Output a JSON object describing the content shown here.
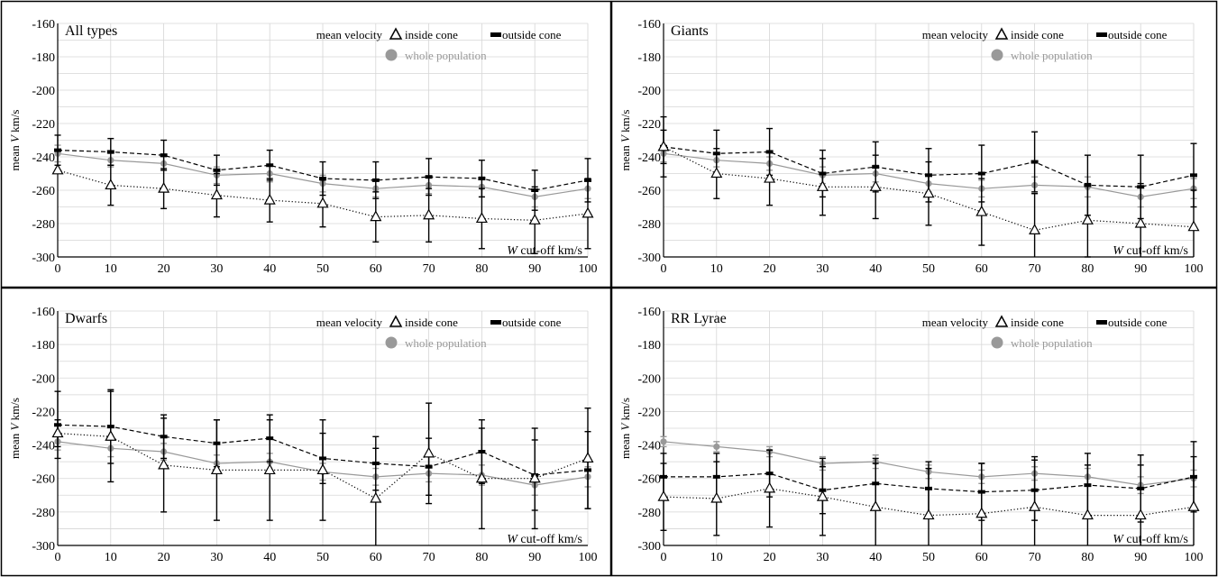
{
  "chart_data": [
    {
      "type": "line",
      "title": "All types",
      "xlabel_var": "W",
      "xlabel_rest": " cut-off km/s",
      "ylabel_pre": "mean ",
      "ylabel_var": "V",
      "ylabel_post": " km/s",
      "legend_heading": "mean velocity",
      "xlim": [
        0,
        100
      ],
      "ylim": [
        -300,
        -160
      ],
      "x": [
        0,
        10,
        20,
        30,
        40,
        50,
        60,
        70,
        80,
        90,
        100
      ],
      "xticks": [
        "0",
        "10",
        "20",
        "30",
        "40",
        "50",
        "60",
        "70",
        "80",
        "90",
        "100"
      ],
      "yticks": [
        "-160",
        "-180",
        "-200",
        "-220",
        "-240",
        "-260",
        "-280",
        "-300"
      ],
      "grid": true,
      "series": [
        {
          "name": "inside cone",
          "marker": "triangle",
          "style": "dotted",
          "color": "#000000",
          "values": [
            -248,
            -257,
            -259,
            -263,
            -266,
            -268,
            -276,
            -275,
            -277,
            -278,
            -274
          ],
          "err": [
            0,
            12,
            12,
            13,
            13,
            14,
            15,
            16,
            18,
            20,
            21
          ]
        },
        {
          "name": "outside cone",
          "marker": "bar",
          "style": "dashed",
          "color": "#000000",
          "values": [
            -236,
            -237,
            -239,
            -248,
            -245,
            -253,
            -254,
            -252,
            -253,
            -260,
            -254
          ],
          "err": [
            9,
            8,
            9,
            9,
            9,
            10,
            11,
            11,
            11,
            12,
            13
          ]
        },
        {
          "name": "whole population",
          "marker": "circle",
          "style": "solid",
          "color": "#999999",
          "values": [
            -238,
            -242,
            -244,
            -251,
            -250,
            -256,
            -259,
            -257,
            -258,
            -264,
            -259
          ],
          "err": [
            5,
            4,
            4,
            5,
            5,
            5,
            5,
            5,
            6,
            6,
            6
          ]
        }
      ]
    },
    {
      "type": "line",
      "title": "Giants",
      "xlabel_var": "W",
      "xlabel_rest": " cut-off km/s",
      "ylabel_pre": "mean ",
      "ylabel_var": "V",
      "ylabel_post": " km/s",
      "legend_heading": "mean velocity",
      "xlim": [
        0,
        100
      ],
      "ylim": [
        -300,
        -160
      ],
      "x": [
        0,
        10,
        20,
        30,
        40,
        50,
        60,
        70,
        80,
        90,
        100
      ],
      "xticks": [
        "0",
        "10",
        "20",
        "30",
        "40",
        "50",
        "60",
        "70",
        "80",
        "90",
        "100"
      ],
      "yticks": [
        "-160",
        "-180",
        "-200",
        "-220",
        "-240",
        "-260",
        "-280",
        "-300"
      ],
      "grid": true,
      "series": [
        {
          "name": "inside cone",
          "marker": "triangle",
          "style": "dotted",
          "color": "#000000",
          "values": [
            -234,
            -250,
            -253,
            -258,
            -258,
            -262,
            -273,
            -284,
            -278,
            -280,
            -282
          ],
          "err": [
            10,
            15,
            16,
            17,
            19,
            19,
            20,
            22,
            22,
            24,
            22
          ]
        },
        {
          "name": "outside cone",
          "marker": "bar",
          "style": "dashed",
          "color": "#000000",
          "values": [
            -234,
            -238,
            -237,
            -250,
            -246,
            -251,
            -250,
            -243,
            -257,
            -258,
            -251
          ],
          "err": [
            18,
            14,
            14,
            14,
            15,
            16,
            17,
            18,
            18,
            19,
            19
          ]
        },
        {
          "name": "whole population",
          "marker": "circle",
          "style": "solid",
          "color": "#999999",
          "values": [
            -238,
            -242,
            -244,
            -251,
            -250,
            -256,
            -259,
            -257,
            -258,
            -264,
            -259
          ],
          "err": [
            5,
            4,
            4,
            5,
            5,
            5,
            5,
            5,
            6,
            6,
            6
          ]
        }
      ]
    },
    {
      "type": "line",
      "title": "Dwarfs",
      "xlabel_var": "W",
      "xlabel_rest": " cut-off km/s",
      "ylabel_pre": "mean ",
      "ylabel_var": "V",
      "ylabel_post": " km/s",
      "legend_heading": "mean velocity",
      "xlim": [
        0,
        100
      ],
      "ylim": [
        -300,
        -160
      ],
      "x": [
        0,
        10,
        20,
        30,
        40,
        50,
        60,
        70,
        80,
        90,
        100
      ],
      "xticks": [
        "0",
        "10",
        "20",
        "30",
        "40",
        "50",
        "60",
        "70",
        "80",
        "90",
        "100"
      ],
      "yticks": [
        "-160",
        "-180",
        "-200",
        "-220",
        "-240",
        "-260",
        "-280",
        "-300"
      ],
      "grid": true,
      "series": [
        {
          "name": "inside cone",
          "marker": "triangle",
          "style": "dotted",
          "color": "#000000",
          "values": [
            -233,
            -235,
            -252,
            -255,
            -255,
            -255,
            -272,
            -245,
            -260,
            -260,
            -248
          ],
          "err": [
            8,
            27,
            28,
            30,
            30,
            30,
            30,
            30,
            30,
            30,
            30
          ]
        },
        {
          "name": "outside cone",
          "marker": "bar",
          "style": "dashed",
          "color": "#000000",
          "values": [
            -228,
            -229,
            -235,
            -239,
            -236,
            -248,
            -251,
            -253,
            -244,
            -258,
            -255
          ],
          "err": [
            20,
            22,
            13,
            14,
            14,
            15,
            16,
            17,
            19,
            21,
            23
          ]
        },
        {
          "name": "whole population",
          "marker": "circle",
          "style": "solid",
          "color": "#999999",
          "values": [
            -238,
            -242,
            -244,
            -251,
            -250,
            -256,
            -259,
            -257,
            -258,
            -264,
            -259
          ],
          "err": [
            5,
            5,
            5,
            5,
            5,
            5,
            5,
            5,
            6,
            6,
            6
          ]
        }
      ]
    },
    {
      "type": "line",
      "title": "RR Lyrae",
      "xlabel_var": "W",
      "xlabel_rest": " cut-off km/s",
      "ylabel_pre": "mean ",
      "ylabel_var": "V",
      "ylabel_post": " km/s",
      "legend_heading": "mean velocity",
      "xlim": [
        0,
        100
      ],
      "ylim": [
        -300,
        -160
      ],
      "x": [
        0,
        10,
        20,
        30,
        40,
        50,
        60,
        70,
        80,
        90,
        100
      ],
      "xticks": [
        "0",
        "10",
        "20",
        "30",
        "40",
        "50",
        "60",
        "70",
        "80",
        "90",
        "100"
      ],
      "yticks": [
        "-160",
        "-180",
        "-200",
        "-220",
        "-240",
        "-260",
        "-280",
        "-300"
      ],
      "grid": true,
      "series": [
        {
          "name": "inside cone",
          "marker": "triangle",
          "style": "dotted",
          "color": "#000000",
          "values": [
            -271,
            -272,
            -266,
            -271,
            -277,
            -282,
            -281,
            -277,
            -282,
            -282,
            -277
          ],
          "err": [
            20,
            22,
            23,
            23,
            26,
            28,
            30,
            30,
            30,
            30,
            30
          ]
        },
        {
          "name": "outside cone",
          "marker": "bar",
          "style": "dashed",
          "color": "#000000",
          "values": [
            -259,
            -259,
            -257,
            -267,
            -263,
            -266,
            -268,
            -267,
            -264,
            -266,
            -259
          ],
          "err": [
            14,
            14,
            14,
            14,
            15,
            16,
            17,
            18,
            19,
            20,
            21
          ]
        },
        {
          "name": "whole population",
          "marker": "circle",
          "style": "solid",
          "color": "#999999",
          "values": [
            -238,
            -241,
            -244,
            -251,
            -250,
            -256,
            -259,
            -257,
            -259,
            -264,
            -260
          ],
          "err": [
            3,
            3,
            3,
            4,
            4,
            4,
            4,
            4,
            5,
            5,
            5
          ]
        }
      ]
    }
  ]
}
